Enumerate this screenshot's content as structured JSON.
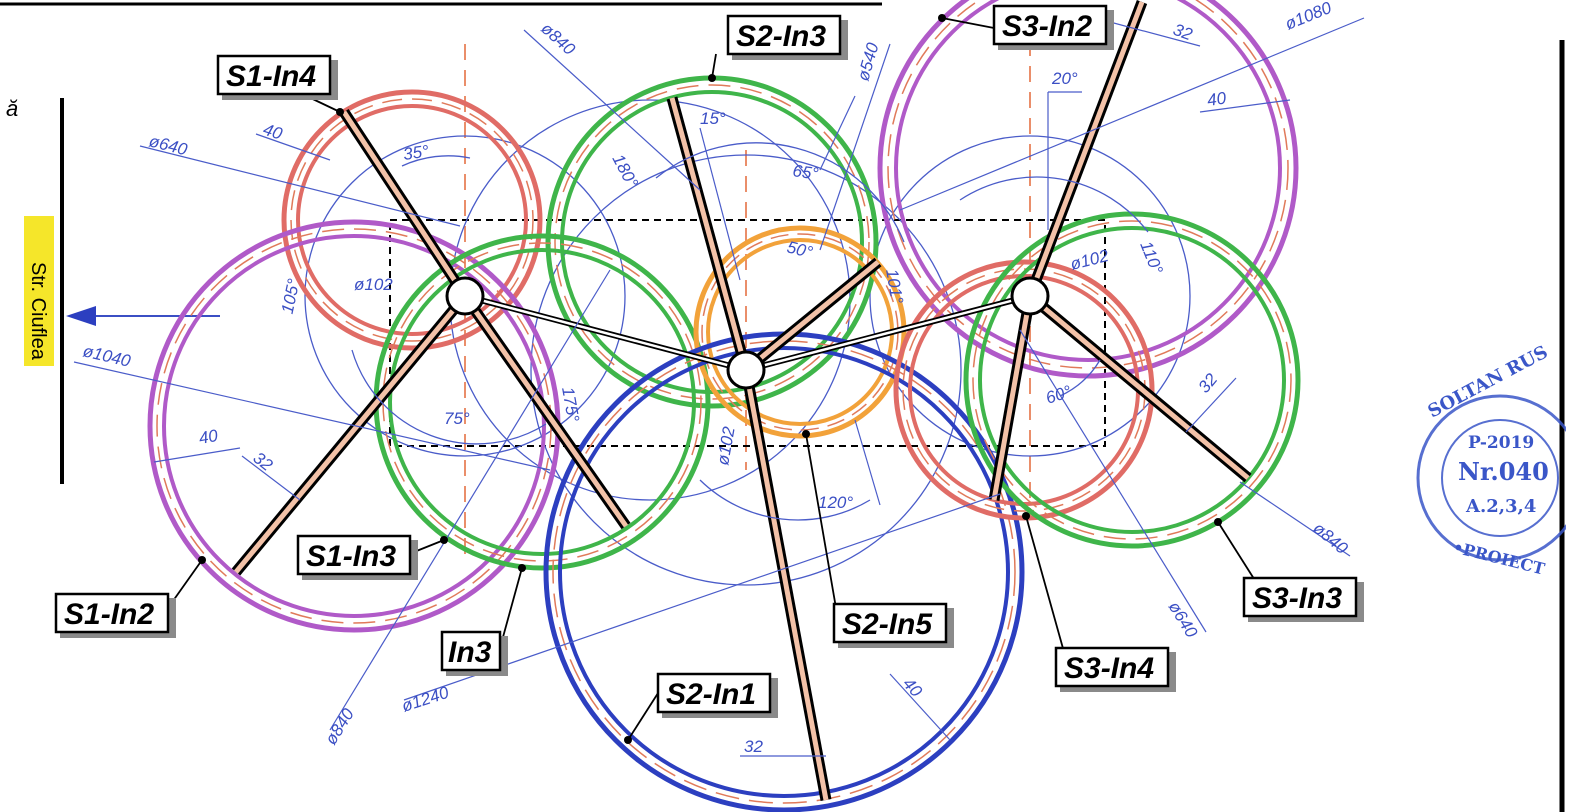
{
  "colors": {
    "purple": "#b05ac8",
    "red": "#e06c66",
    "green": "#3fb54a",
    "blue": "#2c3fc0",
    "orange": "#f2a23a",
    "inner_dash": "#e07a5a",
    "dimension": "#3b4fc4",
    "street_bg": "#f5e62a",
    "stamp": "#3a56c8"
  },
  "street": {
    "label": "Str. Ciuflea"
  },
  "title_partial": "ă",
  "labels": {
    "s1_in4": "S1-In4",
    "s1_in3": "S1-In3",
    "s1_in2": "S1-In2",
    "in3": "In3",
    "s2_in3": "S2-In3",
    "s2_in5": "S2-In5",
    "s2_in1": "S2-In1",
    "s3_in2": "S3-In2",
    "s3_in3": "S3-In3",
    "s3_in4": "S3-In4"
  },
  "dimensions": {
    "d640_a": "ø640",
    "d840_a": "ø840",
    "d540": "ø540",
    "d1080": "ø1080",
    "d102_a": "ø102",
    "d102_b": "ø102",
    "d102_c": "ø102",
    "d1040": "ø1040",
    "d840_b": "ø840",
    "d1240": "ø1240",
    "d640_b": "ø640",
    "d840_c": "ø840",
    "w40_a": "40",
    "w40_b": "40",
    "w40_c": "40",
    "w40_d": "40",
    "w32_a": "32",
    "w32_b": "32",
    "w32_c": "32",
    "w32_d": "32",
    "a35": "35°",
    "a15": "15°",
    "a180": "180°",
    "a65": "65°",
    "a50": "50°",
    "a20": "20°",
    "a110": "110°",
    "a105": "105°",
    "a75": "75°",
    "a175": "175°",
    "a101": "101°",
    "a120": "120°",
    "a60": "60°"
  },
  "stamp": {
    "top": "SOLTAN RUS",
    "year": "P-2019",
    "number": "Nr.040",
    "code": "A.2,3,4",
    "bottom": "•PROIECT"
  }
}
